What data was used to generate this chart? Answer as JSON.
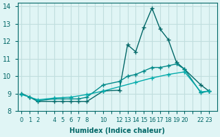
{
  "xlabel": "Humidex (Indice chaleur)",
  "ylabel": "",
  "bg_color": "#e0f5f5",
  "grid_color": "#c0dede",
  "line_color1": "#006666",
  "line_color2": "#008888",
  "line_color3": "#00aaaa",
  "xlim": [
    -0.5,
    24
  ],
  "ylim": [
    8,
    14.2
  ],
  "yticks": [
    8,
    9,
    10,
    11,
    12,
    13,
    14
  ],
  "xtick_positions": [
    0,
    1,
    2,
    3,
    4,
    5,
    6,
    7,
    8,
    9,
    10,
    11,
    12,
    13,
    14,
    15,
    16,
    17,
    18,
    19,
    20,
    21,
    22,
    23
  ],
  "xtick_labels": [
    "0",
    "1",
    "2",
    "",
    "4",
    "5",
    "6",
    "7",
    "8",
    "",
    "10",
    "",
    "12",
    "13",
    "14",
    "15",
    "16",
    "17",
    "18",
    "19",
    "20",
    "",
    "22",
    "23"
  ],
  "line1_x": [
    0,
    1,
    2,
    4,
    5,
    6,
    7,
    8,
    10,
    12,
    13,
    14,
    15,
    16,
    17,
    18,
    19,
    20,
    22,
    23
  ],
  "line1_y": [
    9.0,
    8.8,
    8.55,
    8.55,
    8.55,
    8.55,
    8.55,
    8.55,
    9.15,
    9.2,
    11.8,
    11.4,
    12.8,
    13.9,
    12.7,
    12.1,
    10.8,
    10.4,
    9.5,
    9.15
  ],
  "line2_x": [
    0,
    1,
    2,
    4,
    5,
    6,
    7,
    8,
    10,
    12,
    13,
    14,
    15,
    16,
    17,
    18,
    19,
    20,
    22,
    23
  ],
  "line2_y": [
    9.0,
    8.8,
    8.6,
    8.7,
    8.7,
    8.7,
    8.7,
    8.8,
    9.5,
    9.7,
    10.0,
    10.1,
    10.3,
    10.5,
    10.5,
    10.6,
    10.7,
    10.4,
    9.05,
    9.15
  ],
  "line3_x": [
    0,
    2,
    4,
    6,
    8,
    10,
    14,
    16,
    18,
    20,
    22,
    23
  ],
  "line3_y": [
    8.95,
    8.65,
    8.75,
    8.8,
    8.95,
    9.15,
    9.65,
    9.9,
    10.1,
    10.25,
    9.1,
    9.15
  ]
}
